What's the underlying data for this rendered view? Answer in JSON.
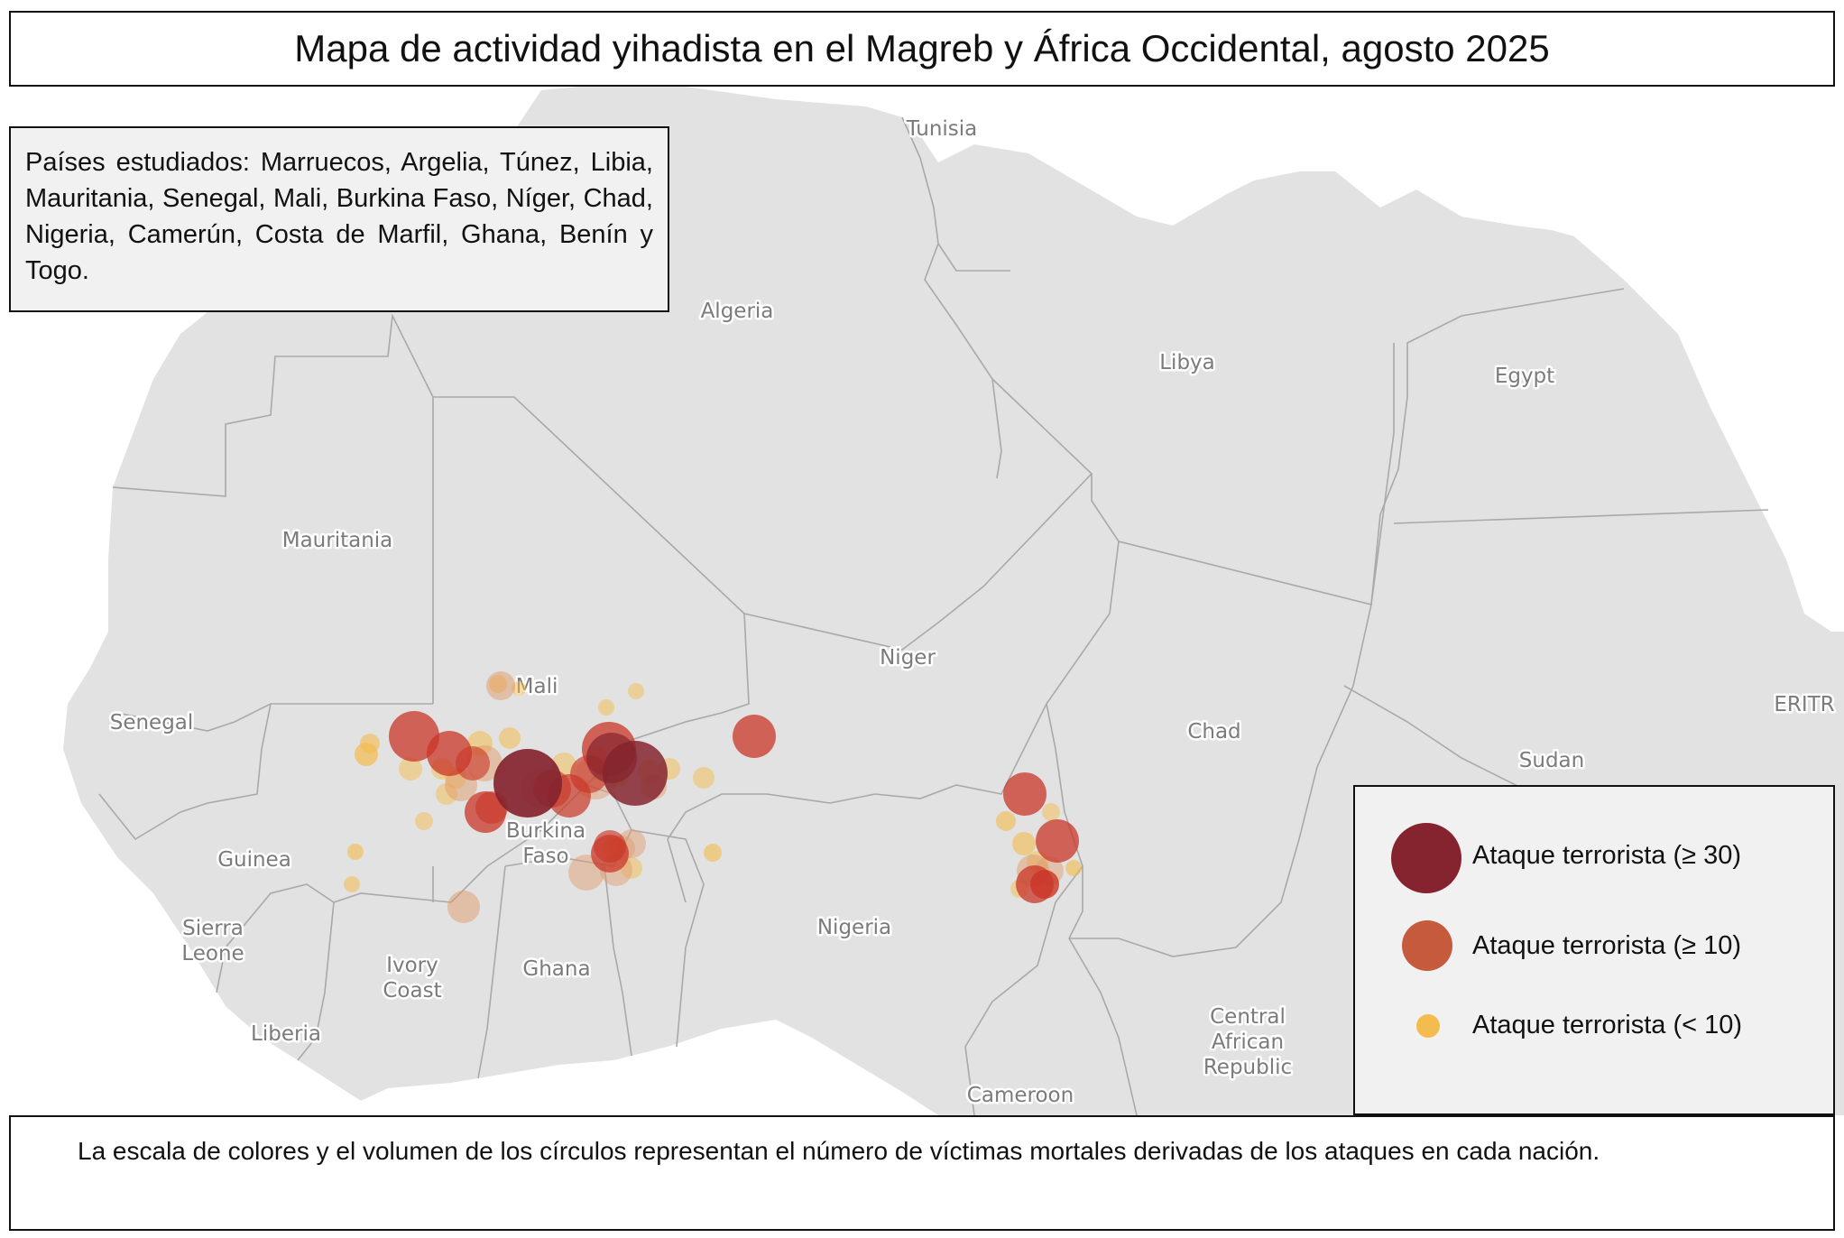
{
  "title": "Mapa de actividad yihadista en el Magreb y África Occidental, agosto 2025",
  "countries_studied": "Países estudiados: Marruecos, Argelia, Túnez, Libia, Mauritania, Senegal, Mali, Burkina Faso, Níger, Chad, Nigeria, Camerún, Costa de Marfil, Ghana, Benín y Togo.",
  "map_labels": [
    {
      "name": "tunisia",
      "text": "Tunisia"
    },
    {
      "name": "algeria",
      "text": "Algeria"
    },
    {
      "name": "libya",
      "text": "Libya"
    },
    {
      "name": "egypt",
      "text": "Egypt"
    },
    {
      "name": "mauritania",
      "text": "Mauritania"
    },
    {
      "name": "mali",
      "text": "Mali"
    },
    {
      "name": "niger",
      "text": "Niger"
    },
    {
      "name": "senegal",
      "text": "Senegal"
    },
    {
      "name": "chad",
      "text": "Chad"
    },
    {
      "name": "eritrea",
      "text": "ERITR"
    },
    {
      "name": "sudan",
      "text": "Sudan"
    },
    {
      "name": "burkina-faso",
      "lines": [
        "Burkina",
        "Faso"
      ]
    },
    {
      "name": "guinea",
      "text": "Guinea"
    },
    {
      "name": "sierra-leone",
      "lines": [
        "Sierra",
        "Leone"
      ]
    },
    {
      "name": "nigeria",
      "text": "Nigeria"
    },
    {
      "name": "ivory-coast",
      "lines": [
        "Ivory",
        "Coast"
      ]
    },
    {
      "name": "ghana",
      "text": "Ghana"
    },
    {
      "name": "liberia",
      "text": "Liberia"
    },
    {
      "name": "central-african-republic",
      "lines": [
        "Central",
        "African",
        "Republic"
      ]
    },
    {
      "name": "cameroon",
      "text": "Cameroon"
    }
  ],
  "legend": {
    "items": [
      {
        "label": "Ataque terrorista (≥ 30)",
        "color": "#85242f"
      },
      {
        "label": "Ataque terrorista (≥ 10)",
        "color": "#c65a3c"
      },
      {
        "label": "Ataque terrorista (< 10)",
        "color": "#f4bc4f"
      }
    ]
  },
  "note": "La escala de colores y el volumen de los círculos representan el número de víctimas mortales derivadas de los ataques en cada nación.",
  "colors": {
    "land": "#e2e2e2",
    "border": "#a9a9a9",
    "high": "#85242f",
    "mid": "#c93627",
    "low": "#f4bc4f"
  }
}
